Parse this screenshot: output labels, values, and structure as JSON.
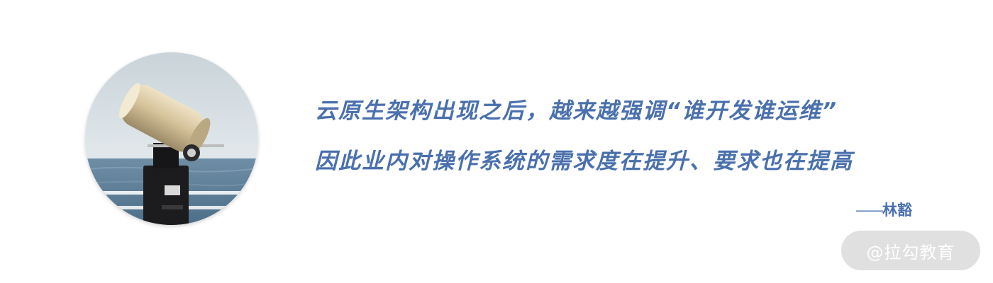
{
  "quote": {
    "line1": "云原生架构出现之后，越来越强调“谁开发谁运维”",
    "line2": "因此业内对操作系统的需求度在提升、要求也在提高"
  },
  "attribution": {
    "dash": "——",
    "author": "林豁"
  },
  "watermark": {
    "text": "@拉勾教育"
  },
  "photo": {
    "subject": "coin-operated binoculars by the sea"
  },
  "colors": {
    "quote_text": "#4a70ad",
    "background": "#ffffff"
  }
}
